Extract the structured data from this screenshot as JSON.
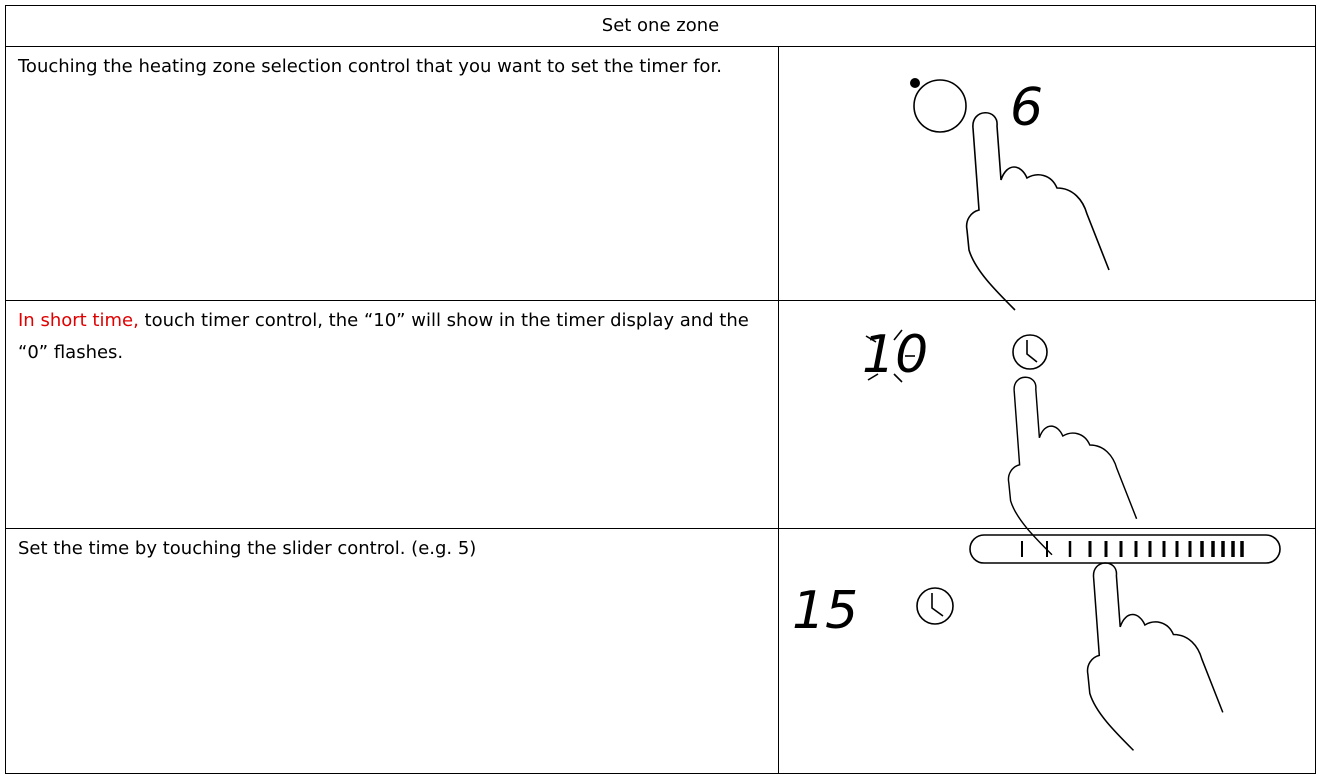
{
  "header": {
    "title": "Set one zone"
  },
  "rows": [
    {
      "text": "Touching the heating zone selection control that you want to set the timer for.",
      "display": "6"
    },
    {
      "highlight": "In short time,",
      "text": "touch timer control, the “10” will show in the timer display  and the “0” flashes.",
      "display": "10"
    },
    {
      "text": "Set the time by touching the slider control. (e.g. 5)",
      "display": "15"
    }
  ]
}
